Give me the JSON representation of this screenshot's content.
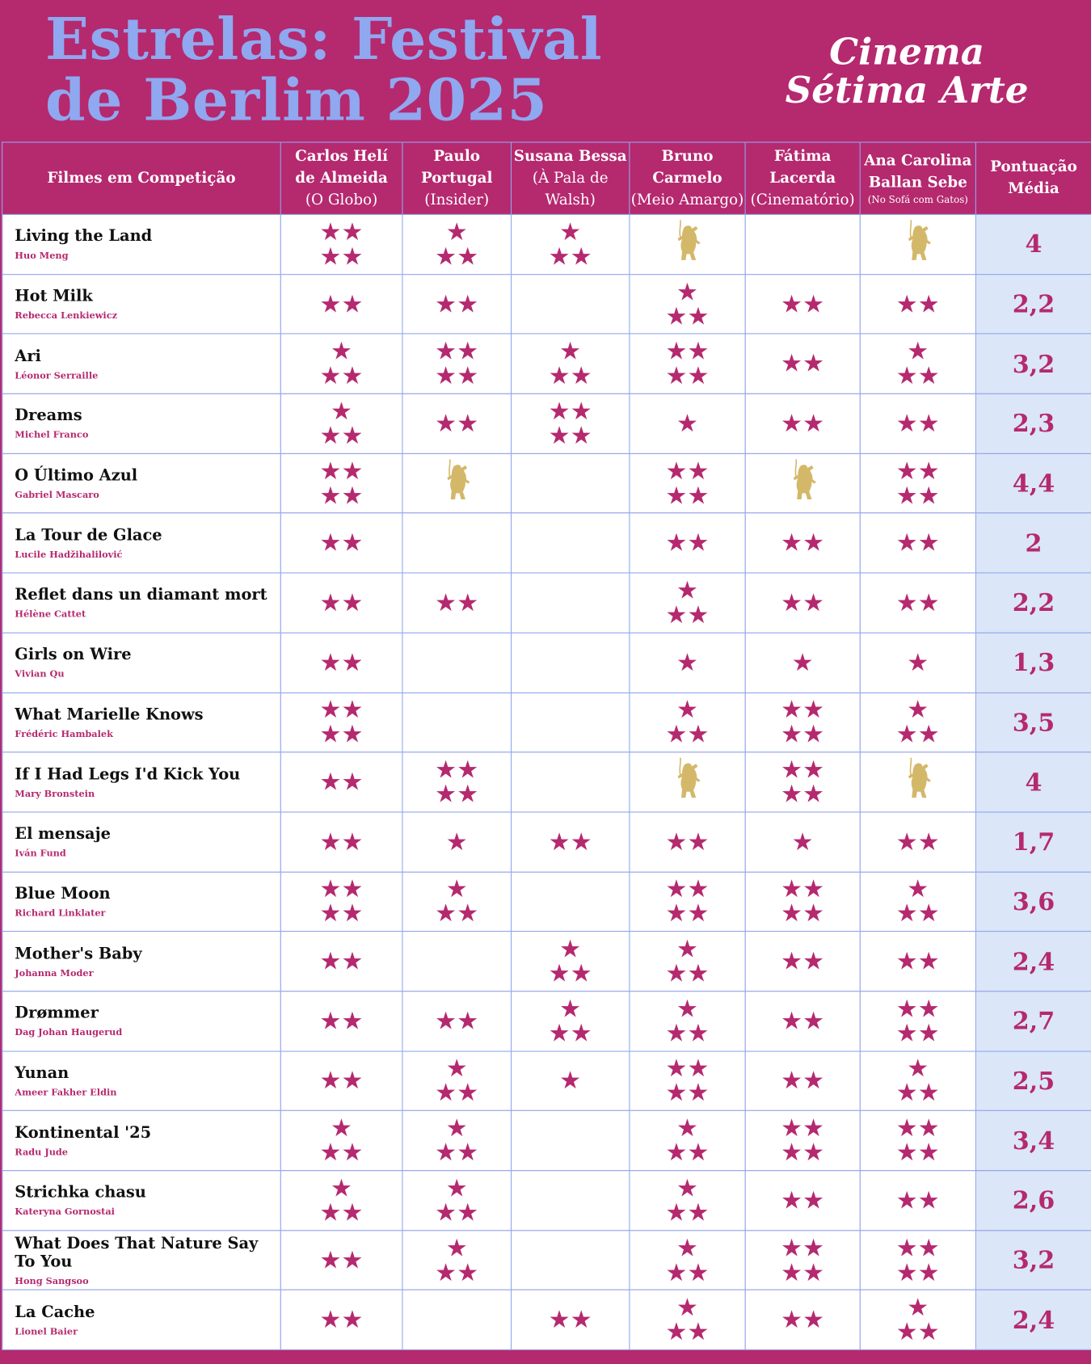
{
  "header": {
    "title_line1": "Estrelas: Festival",
    "title_line2": "de Berlim 2025",
    "brand_line1": "Cinema",
    "brand_line2": "Sétima Arte"
  },
  "columns": [
    {
      "name": "Filmes em Competição"
    },
    {
      "name1": "Carlos Helí",
      "name2": "de Almeida",
      "outlet": "(O Globo)"
    },
    {
      "name1": "Paulo",
      "name2": "Portugal",
      "outlet": "(Insider)"
    },
    {
      "name1": "Susana Bessa",
      "name2": "(À Pala de",
      "outlet": "Walsh)"
    },
    {
      "name1": "Bruno",
      "name2": "Carmelo",
      "outlet": "(Meio Amargo)"
    },
    {
      "name1": "Fátima",
      "name2": "Lacerda",
      "outlet": "(Cinematório)"
    },
    {
      "name1": "Ana Carolina",
      "name2": "Ballan Sebe",
      "outlet": "(No Sofá com Gatos)"
    },
    {
      "name1": "Pontuação",
      "name2": "Média"
    }
  ],
  "colors": {
    "accent": "#b5296f",
    "title": "#8fa8f0",
    "avg_bg": "#dbe6f8",
    "bear": "#d4b86a"
  },
  "legend_note": "ratings: number of stars 0-4; 'bear' = golden bear icon",
  "films": [
    {
      "title": "Living the Land",
      "director": "Huo Meng",
      "ratings": [
        4,
        3,
        3,
        "bear",
        0,
        "bear"
      ],
      "avg": "4"
    },
    {
      "title": "Hot Milk",
      "director": "Rebecca Lenkiewicz",
      "ratings": [
        2,
        2,
        0,
        3,
        2,
        2
      ],
      "avg": "2,2"
    },
    {
      "title": "Ari",
      "director": "Léonor Serraille",
      "ratings": [
        3,
        4,
        3,
        4,
        2,
        3
      ],
      "avg": "3,2"
    },
    {
      "title": "Dreams",
      "director": "Michel Franco",
      "ratings": [
        3,
        2,
        4,
        1,
        2,
        2
      ],
      "avg": "2,3"
    },
    {
      "title": "O Último Azul",
      "director": "Gabriel Mascaro",
      "ratings": [
        4,
        "bear",
        0,
        4,
        "bear",
        4
      ],
      "avg": "4,4"
    },
    {
      "title": "La Tour de Glace",
      "director": "Lucile Hadžihalilović",
      "ratings": [
        2,
        0,
        0,
        2,
        2,
        2
      ],
      "avg": "2"
    },
    {
      "title": "Reflet dans un diamant mort",
      "director": "Hélène Cattet",
      "ratings": [
        2,
        2,
        0,
        3,
        2,
        2
      ],
      "avg": "2,2"
    },
    {
      "title": "Girls on Wire",
      "director": "Vivian Qu",
      "ratings": [
        2,
        0,
        0,
        1,
        1,
        1
      ],
      "avg": "1,3"
    },
    {
      "title": "What Marielle Knows",
      "director": "Frédéric Hambalek",
      "ratings": [
        4,
        0,
        0,
        3,
        4,
        3
      ],
      "avg": "3,5"
    },
    {
      "title": "If I Had Legs I'd Kick You",
      "director": "Mary Bronstein",
      "ratings": [
        2,
        4,
        0,
        "bear",
        4,
        "bear"
      ],
      "avg": "4"
    },
    {
      "title": "El mensaje",
      "director": "Iván Fund",
      "ratings": [
        2,
        1,
        2,
        2,
        1,
        2
      ],
      "avg": "1,7"
    },
    {
      "title": "Blue Moon",
      "director": "Richard Linklater",
      "ratings": [
        4,
        3,
        0,
        4,
        4,
        3
      ],
      "avg": "3,6"
    },
    {
      "title": "Mother's Baby",
      "director": "Johanna Moder",
      "ratings": [
        2,
        0,
        3,
        3,
        2,
        2
      ],
      "avg": "2,4"
    },
    {
      "title": "Drømmer",
      "director": "Dag Johan Haugerud",
      "ratings": [
        2,
        2,
        3,
        3,
        2,
        4
      ],
      "avg": "2,7"
    },
    {
      "title": "Yunan",
      "director": "Ameer Fakher Eldin",
      "ratings": [
        2,
        3,
        1,
        4,
        2,
        3
      ],
      "avg": "2,5"
    },
    {
      "title": "Kontinental '25",
      "director": "Radu Jude",
      "ratings": [
        3,
        3,
        0,
        3,
        4,
        4
      ],
      "avg": "3,4"
    },
    {
      "title": "Strichka chasu",
      "director": "Kateryna Gornostai",
      "ratings": [
        3,
        3,
        0,
        3,
        2,
        2
      ],
      "avg": "2,6"
    },
    {
      "title": "What Does That Nature Say To You",
      "director": "Hong Sangsoo",
      "ratings": [
        2,
        3,
        0,
        3,
        4,
        4
      ],
      "avg": "3,2"
    },
    {
      "title": "La Cache",
      "director": "Lionel Baier",
      "ratings": [
        2,
        0,
        2,
        3,
        2,
        3
      ],
      "avg": "2,4"
    }
  ]
}
